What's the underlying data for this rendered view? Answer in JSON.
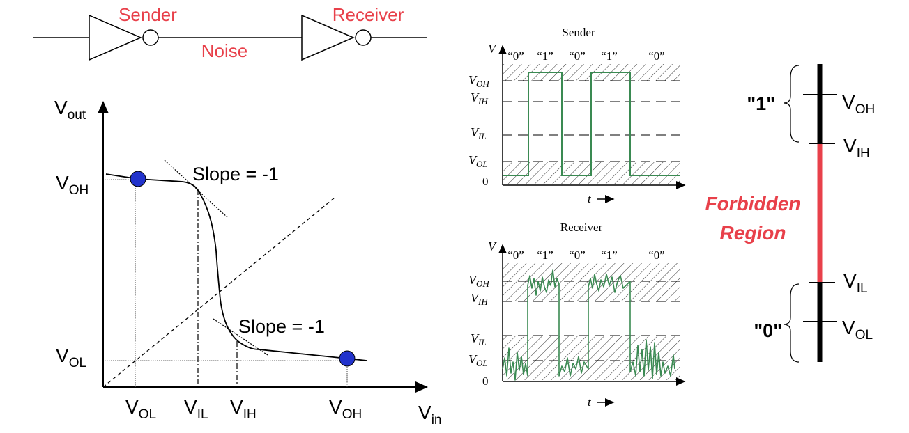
{
  "colors": {
    "accent_red": "#e8404a",
    "signal_green": "#3a8a52",
    "dot_blue": "#2233cc",
    "ink": "#000000"
  },
  "top_circuit": {
    "sender_label": "Sender",
    "receiver_label": "Receiver",
    "noise_label": "Noise"
  },
  "vtc": {
    "y_axis_label": "V",
    "y_axis_sub": "out",
    "x_axis_label": "V",
    "x_axis_sub": "in",
    "y_tick_voh": {
      "main": "V",
      "sub": "OH"
    },
    "y_tick_vol": {
      "main": "V",
      "sub": "OL"
    },
    "x_ticks": [
      {
        "main": "V",
        "sub": "OL"
      },
      {
        "main": "V",
        "sub": "IL"
      },
      {
        "main": "V",
        "sub": "IH"
      },
      {
        "main": "V",
        "sub": "OH"
      }
    ],
    "slope_upper": "Slope = -1",
    "slope_lower": "Slope = -1"
  },
  "sender_plot": {
    "title": "Sender",
    "v_label": "V",
    "bits": [
      "“0”",
      "“1”",
      "“0”",
      "“1”",
      "“0”"
    ],
    "levels": [
      {
        "main": "V",
        "sub": "OH"
      },
      {
        "main": "V",
        "sub": "IH"
      },
      {
        "main": "V",
        "sub": "IL"
      },
      {
        "main": "V",
        "sub": "OL"
      }
    ],
    "zero": "0",
    "t_label": "t"
  },
  "receiver_plot": {
    "title": "Receiver",
    "v_label": "V",
    "bits": [
      "“0”",
      "“1”",
      "“0”",
      "“1”",
      "“0”"
    ],
    "levels": [
      {
        "main": "V",
        "sub": "OH"
      },
      {
        "main": "V",
        "sub": "IH"
      },
      {
        "main": "V",
        "sub": "IL"
      },
      {
        "main": "V",
        "sub": "OL"
      }
    ],
    "zero": "0",
    "t_label": "t"
  },
  "level_scale": {
    "one_label": "\"1\"",
    "zero_label": "\"0\"",
    "forbidden_line1": "Forbidden",
    "forbidden_line2": "Region",
    "ticks": [
      {
        "main": "V",
        "sub": "OH"
      },
      {
        "main": "V",
        "sub": "IH"
      },
      {
        "main": "V",
        "sub": "IL"
      },
      {
        "main": "V",
        "sub": "OL"
      }
    ]
  }
}
